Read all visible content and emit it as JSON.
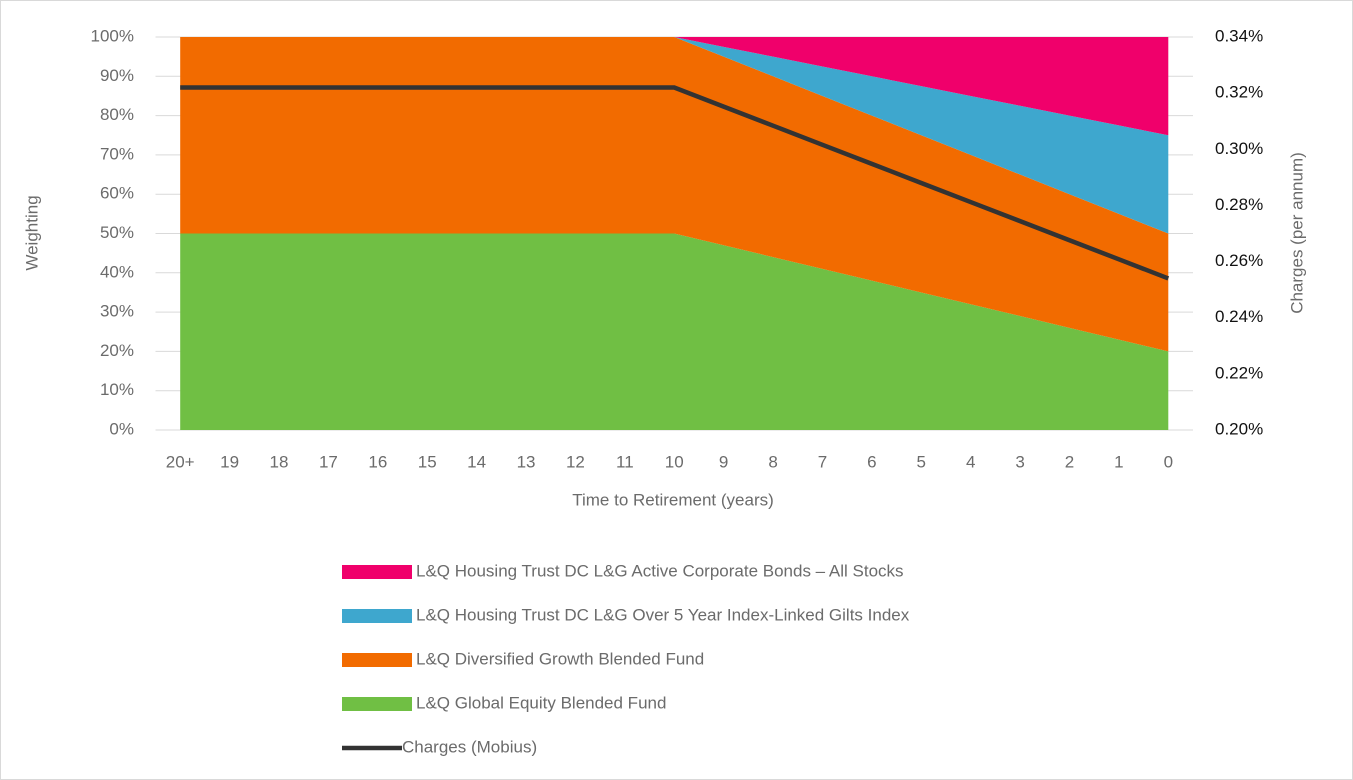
{
  "chart_data": {
    "type": "stacked_area_line",
    "xlabel": "Time to Retirement (years)",
    "ylabel": "Weighting",
    "y2label": "Charges (per annum)",
    "categories": [
      "20+",
      "19",
      "18",
      "17",
      "16",
      "15",
      "14",
      "13",
      "12",
      "11",
      "10",
      "9",
      "8",
      "7",
      "6",
      "5",
      "4",
      "3",
      "2",
      "1",
      "0"
    ],
    "series": [
      {
        "name": "L&Q Global Equity Blended Fund",
        "color": "#70bf44",
        "values": [
          50,
          50,
          50,
          50,
          50,
          50,
          50,
          50,
          50,
          50,
          50,
          47,
          44,
          41,
          38,
          35,
          32,
          29,
          26,
          23,
          20
        ]
      },
      {
        "name": "L&Q Diversified Growth Blended Fund",
        "color": "#f26b00",
        "values": [
          50,
          50,
          50,
          50,
          50,
          50,
          50,
          50,
          50,
          50,
          50,
          48,
          46,
          44,
          42,
          40,
          38,
          36,
          34,
          32,
          30
        ]
      },
      {
        "name": "L&Q Housing Trust DC L&G Over 5 Year Index-Linked Gilts Index",
        "color": "#3ea7ce",
        "values": [
          0,
          0,
          0,
          0,
          0,
          0,
          0,
          0,
          0,
          0,
          0,
          2.5,
          5,
          7.5,
          10,
          12.5,
          15,
          17.5,
          20,
          22.5,
          25
        ]
      },
      {
        "name": "L&Q Housing Trust DC L&G Active Corporate Bonds – All Stocks",
        "color": "#f0006b",
        "values": [
          0,
          0,
          0,
          0,
          0,
          0,
          0,
          0,
          0,
          0,
          0,
          2.5,
          5,
          7.5,
          10,
          12.5,
          15,
          17.5,
          20,
          22.5,
          25
        ]
      },
      {
        "name": "Charges (Mobius)",
        "color": "#333333",
        "axis": "y2",
        "kind": "line",
        "values": [
          0.322,
          0.322,
          0.322,
          0.322,
          0.322,
          0.322,
          0.322,
          0.322,
          0.322,
          0.322,
          0.322,
          0.3152,
          0.3084,
          0.3016,
          0.2948,
          0.288,
          0.2812,
          0.2744,
          0.2676,
          0.2608,
          0.254
        ]
      }
    ],
    "ylim": [
      0,
      100
    ],
    "yticks": [
      {
        "value": 0,
        "label": "0%"
      },
      {
        "value": 10,
        "label": "10%"
      },
      {
        "value": 20,
        "label": "20%"
      },
      {
        "value": 30,
        "label": "30%"
      },
      {
        "value": 40,
        "label": "40%"
      },
      {
        "value": 50,
        "label": "50%"
      },
      {
        "value": 60,
        "label": "60%"
      },
      {
        "value": 70,
        "label": "70%"
      },
      {
        "value": 80,
        "label": "80%"
      },
      {
        "value": 90,
        "label": "90%"
      },
      {
        "value": 100,
        "label": "100%"
      }
    ],
    "y2lim": [
      0.2,
      0.34
    ],
    "y2ticks": [
      {
        "value": 0.2,
        "label": "0.20%"
      },
      {
        "value": 0.22,
        "label": "0.22%"
      },
      {
        "value": 0.24,
        "label": "0.24%"
      },
      {
        "value": 0.26,
        "label": "0.26%"
      },
      {
        "value": 0.28,
        "label": "0.28%"
      },
      {
        "value": 0.3,
        "label": "0.30%"
      },
      {
        "value": 0.32,
        "label": "0.32%"
      },
      {
        "value": 0.34,
        "label": "0.34%"
      }
    ],
    "grid": true
  }
}
